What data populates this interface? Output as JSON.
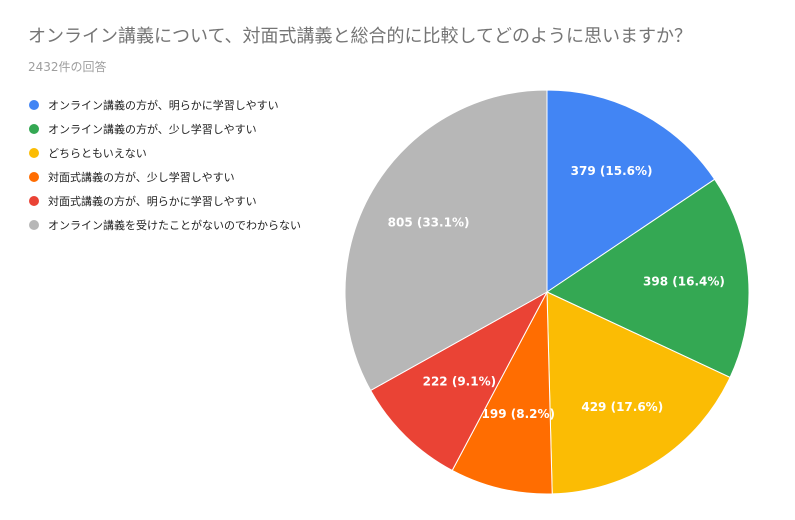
{
  "title": "オンライン講義について、対面式講義と総合的に比較してどのように思いますか？",
  "subtitle": "2432件の回答",
  "chart_data": {
    "type": "pie",
    "title": "オンライン講義について、対面式講義と総合的に比較してどのように思いますか？",
    "subtitle": "2432件の回答",
    "legend_position": "left",
    "categories": [
      "オンライン講義の方が、明らかに学習しやすい",
      "オンライン講義の方が、少し学習しやすい",
      "どちらともいえない",
      "対面式講義の方が、少し学習しやすい",
      "対面式講義の方が、明らかに学習しやすい",
      "オンライン講義を受けたことがないのでわからない"
    ],
    "values": [
      379,
      398,
      429,
      199,
      222,
      805
    ],
    "data_labels": [
      "379 (15.6%)",
      "398 (16.4%)",
      "429 (17.6%)",
      "199 (8.2%)",
      "222 (9.1%)",
      "805 (33.1%)"
    ],
    "colors": [
      "#4285f4",
      "#34a853",
      "#fbbc04",
      "#ff6d01",
      "#ea4335",
      "#b7b7b7"
    ]
  }
}
